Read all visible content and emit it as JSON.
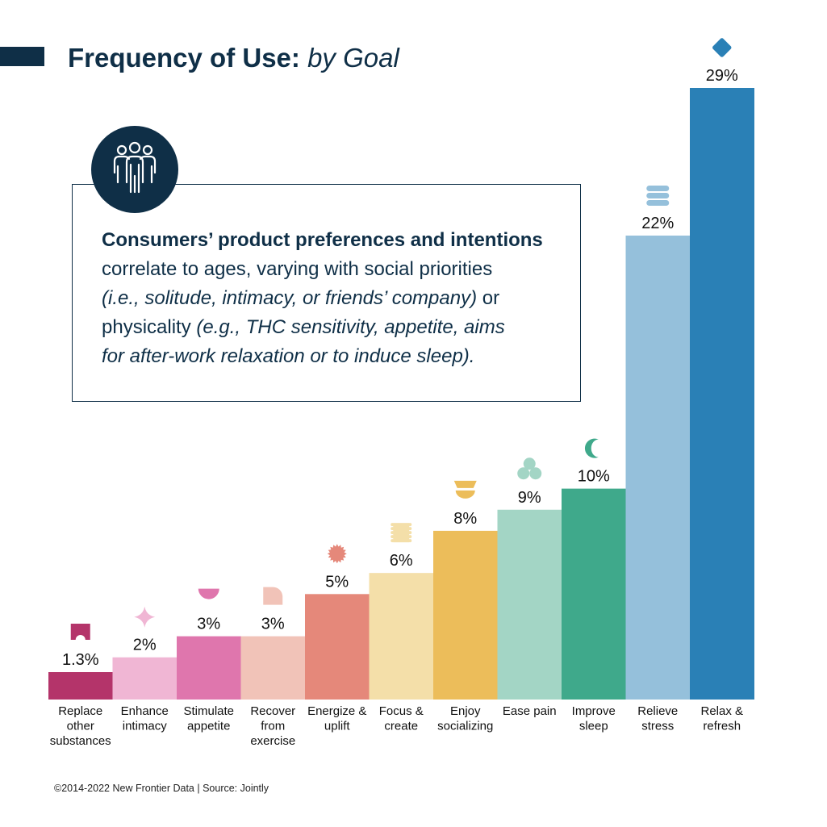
{
  "header": {
    "title_bold": "Frequency of Use:",
    "title_light": "by Goal"
  },
  "info": {
    "headline": "Consumers’ product preferences and intentions",
    "line1": "correlate to ages, varying with social priorities",
    "line2": "(i.e., solitude, intimacy, or friends’ company)",
    "line2_tail": " or",
    "line3_a": "physicality ",
    "line3_b": "(e.g., THC sensitivity, appetite, aims",
    "line4": "for after-work relaxation or to induce sleep).",
    "icon": "people-group-icon"
  },
  "chart_data": {
    "type": "bar",
    "title": "Frequency of Use: by Goal",
    "xlabel": "",
    "ylabel": "",
    "ylim": [
      0,
      29
    ],
    "grid": false,
    "legend": "none",
    "unit": "%",
    "categories": [
      [
        "Replace",
        "other",
        "substances"
      ],
      [
        "Enhance",
        "intimacy"
      ],
      [
        "Stimulate",
        "appetite"
      ],
      [
        "Recover",
        "from",
        "exercise"
      ],
      [
        "Energize &",
        "uplift"
      ],
      [
        "Focus &",
        "create"
      ],
      [
        "Enjoy",
        "socializing"
      ],
      [
        "Ease pain"
      ],
      [
        "Improve",
        "sleep"
      ],
      [
        "Relieve",
        "stress"
      ],
      [
        "Relax &",
        "refresh"
      ]
    ],
    "values": [
      1.3,
      2,
      3,
      3,
      5,
      6,
      8,
      9,
      10,
      22,
      29
    ],
    "value_labels": [
      "1.3%",
      "2%",
      "3%",
      "3%",
      "5%",
      "6%",
      "8%",
      "9%",
      "10%",
      "22%",
      "29%"
    ],
    "colors": [
      "#b4346a",
      "#f0b6d4",
      "#df76ad",
      "#f1c3b8",
      "#e5887a",
      "#f4dfa9",
      "#ecbd5a",
      "#a3d5c5",
      "#3fa98b",
      "#95c0db",
      "#2a80b6"
    ],
    "icons": [
      "arch-icon",
      "sparkle-icon",
      "half-circle-icon",
      "quarter-round-icon",
      "sunburst-icon",
      "stamp-icon",
      "stacked-bowls-icon",
      "trefoil-icon",
      "crescent-moon-icon",
      "stacked-stones-icon",
      "diamond-icon"
    ]
  },
  "footer": {
    "source": "©2014-2022  New Frontier Data | Source: Jointly"
  }
}
